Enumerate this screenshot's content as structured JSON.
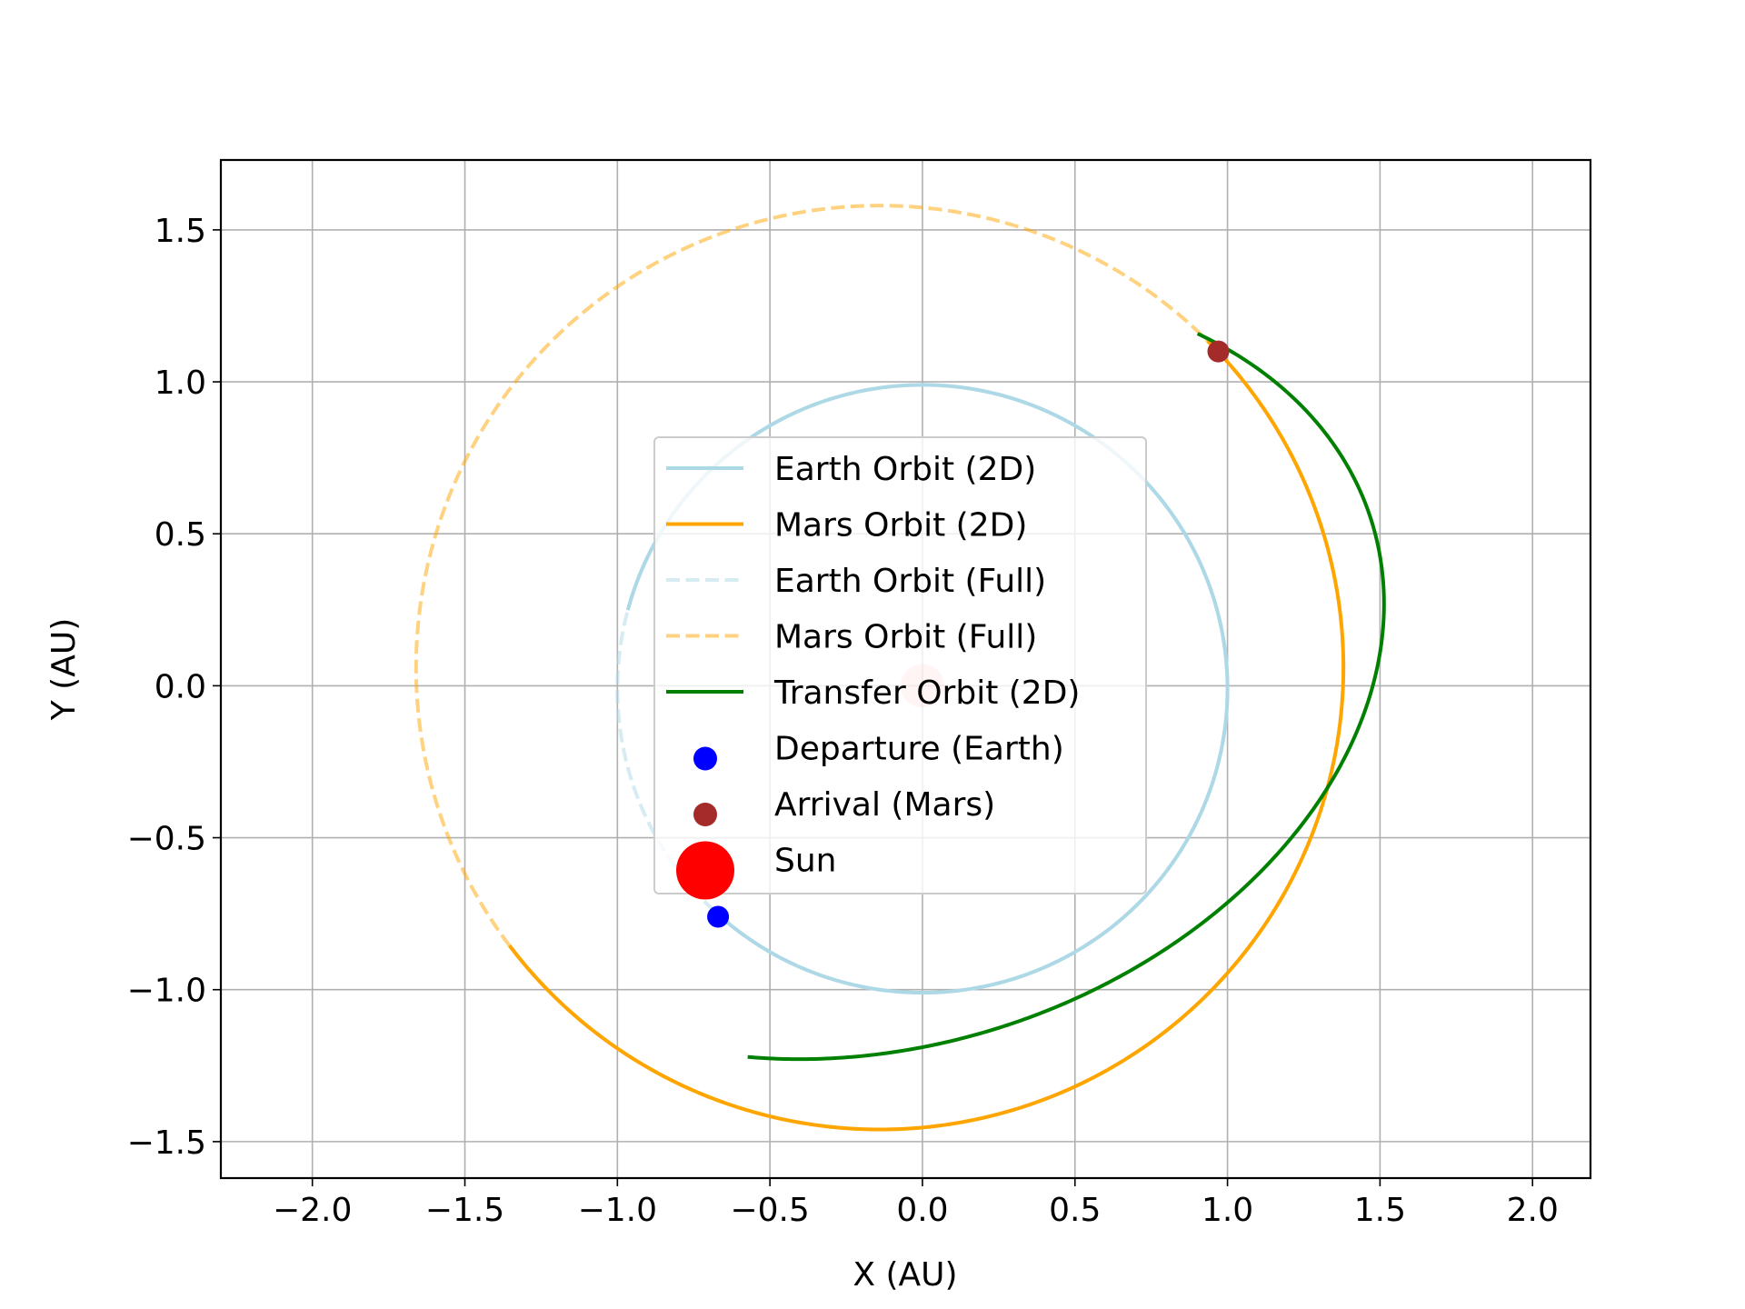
{
  "chart_data": {
    "type": "line",
    "title": "",
    "xlabel": "X (AU)",
    "ylabel": "Y (AU)",
    "xlim": [
      -2.3,
      2.19
    ],
    "ylim": [
      -1.62,
      1.73
    ],
    "xticks": [
      -2.0,
      -1.5,
      -1.0,
      -0.5,
      0.0,
      0.5,
      1.0,
      1.5,
      2.0
    ],
    "xtick_labels": [
      "−2.0",
      "−1.5",
      "−1.0",
      "−0.5",
      "0.0",
      "0.5",
      "1.0",
      "1.5",
      "2.0"
    ],
    "yticks": [
      -1.5,
      -1.0,
      -0.5,
      0.0,
      0.5,
      1.0,
      1.5
    ],
    "ytick_labels": [
      "−1.5",
      "−1.0",
      "−0.5",
      "0.0",
      "0.5",
      "1.0",
      "1.5"
    ],
    "grid": true,
    "legend_position": "center",
    "series": [
      {
        "name": "Earth Orbit (2D)",
        "kind": "ellipse",
        "center": [
          0.0,
          -0.01
        ],
        "rx": 1.0,
        "ry": 1.0,
        "from_deg": -131,
        "to_deg": 165,
        "color": "#add8e6",
        "style": "solid"
      },
      {
        "name": "Mars Orbit (2D)",
        "kind": "ellipse",
        "center": [
          -0.14,
          0.06
        ],
        "rx": 1.52,
        "ry": 1.52,
        "from_deg": -143,
        "to_deg": 45,
        "color": "#ffa500",
        "style": "solid"
      },
      {
        "name": "Earth Orbit (Full)",
        "kind": "ellipse",
        "center": [
          0.0,
          -0.01
        ],
        "rx": 1.0,
        "ry": 1.0,
        "from_deg": 0,
        "to_deg": 360,
        "color": "#add8e6",
        "style": "dashed",
        "opacity": 0.5
      },
      {
        "name": "Mars Orbit (Full)",
        "kind": "ellipse",
        "center": [
          -0.14,
          0.06
        ],
        "rx": 1.52,
        "ry": 1.52,
        "from_deg": 0,
        "to_deg": 360,
        "color": "#ffa500",
        "style": "dashed",
        "opacity": 0.5
      },
      {
        "name": "Transfer Orbit (2D)",
        "kind": "ellipse",
        "center": [
          -0.11,
          0.04
        ],
        "rx": 1.66,
        "ry": 1.22,
        "tilt_deg": 18,
        "from_deg": -120,
        "to_deg": 38,
        "color": "#008000",
        "style": "solid"
      }
    ],
    "points": [
      {
        "name": "Departure (Earth)",
        "x": -0.67,
        "y": -0.76,
        "color": "#0000ff",
        "size": "small"
      },
      {
        "name": "Arrival (Mars)",
        "x": 0.97,
        "y": 1.1,
        "color": "#a52a2a",
        "size": "small"
      },
      {
        "name": "Sun",
        "x": 0.0,
        "y": 0.0,
        "color": "#ff0000",
        "size": "large",
        "opacity": 0.2
      }
    ],
    "legend": [
      {
        "label": "Earth Orbit (2D)",
        "marker": "line",
        "color": "#add8e6",
        "style": "solid",
        "opacity": 1
      },
      {
        "label": "Mars Orbit (2D)",
        "marker": "line",
        "color": "#ffa500",
        "style": "solid",
        "opacity": 1
      },
      {
        "label": "Earth Orbit (Full)",
        "marker": "line",
        "color": "#add8e6",
        "style": "dashed",
        "opacity": 0.5
      },
      {
        "label": "Mars Orbit (Full)",
        "marker": "line",
        "color": "#ffa500",
        "style": "dashed",
        "opacity": 0.5
      },
      {
        "label": "Transfer Orbit (2D)",
        "marker": "line",
        "color": "#008000",
        "style": "solid",
        "opacity": 1
      },
      {
        "label": "Departure (Earth)",
        "marker": "dot",
        "color": "#0000ff",
        "size": "small",
        "opacity": 1
      },
      {
        "label": "Arrival (Mars)",
        "marker": "dot",
        "color": "#a52a2a",
        "size": "small",
        "opacity": 1
      },
      {
        "label": "Sun",
        "marker": "dot",
        "color": "#ff0000",
        "size": "large",
        "opacity": 1
      }
    ]
  }
}
